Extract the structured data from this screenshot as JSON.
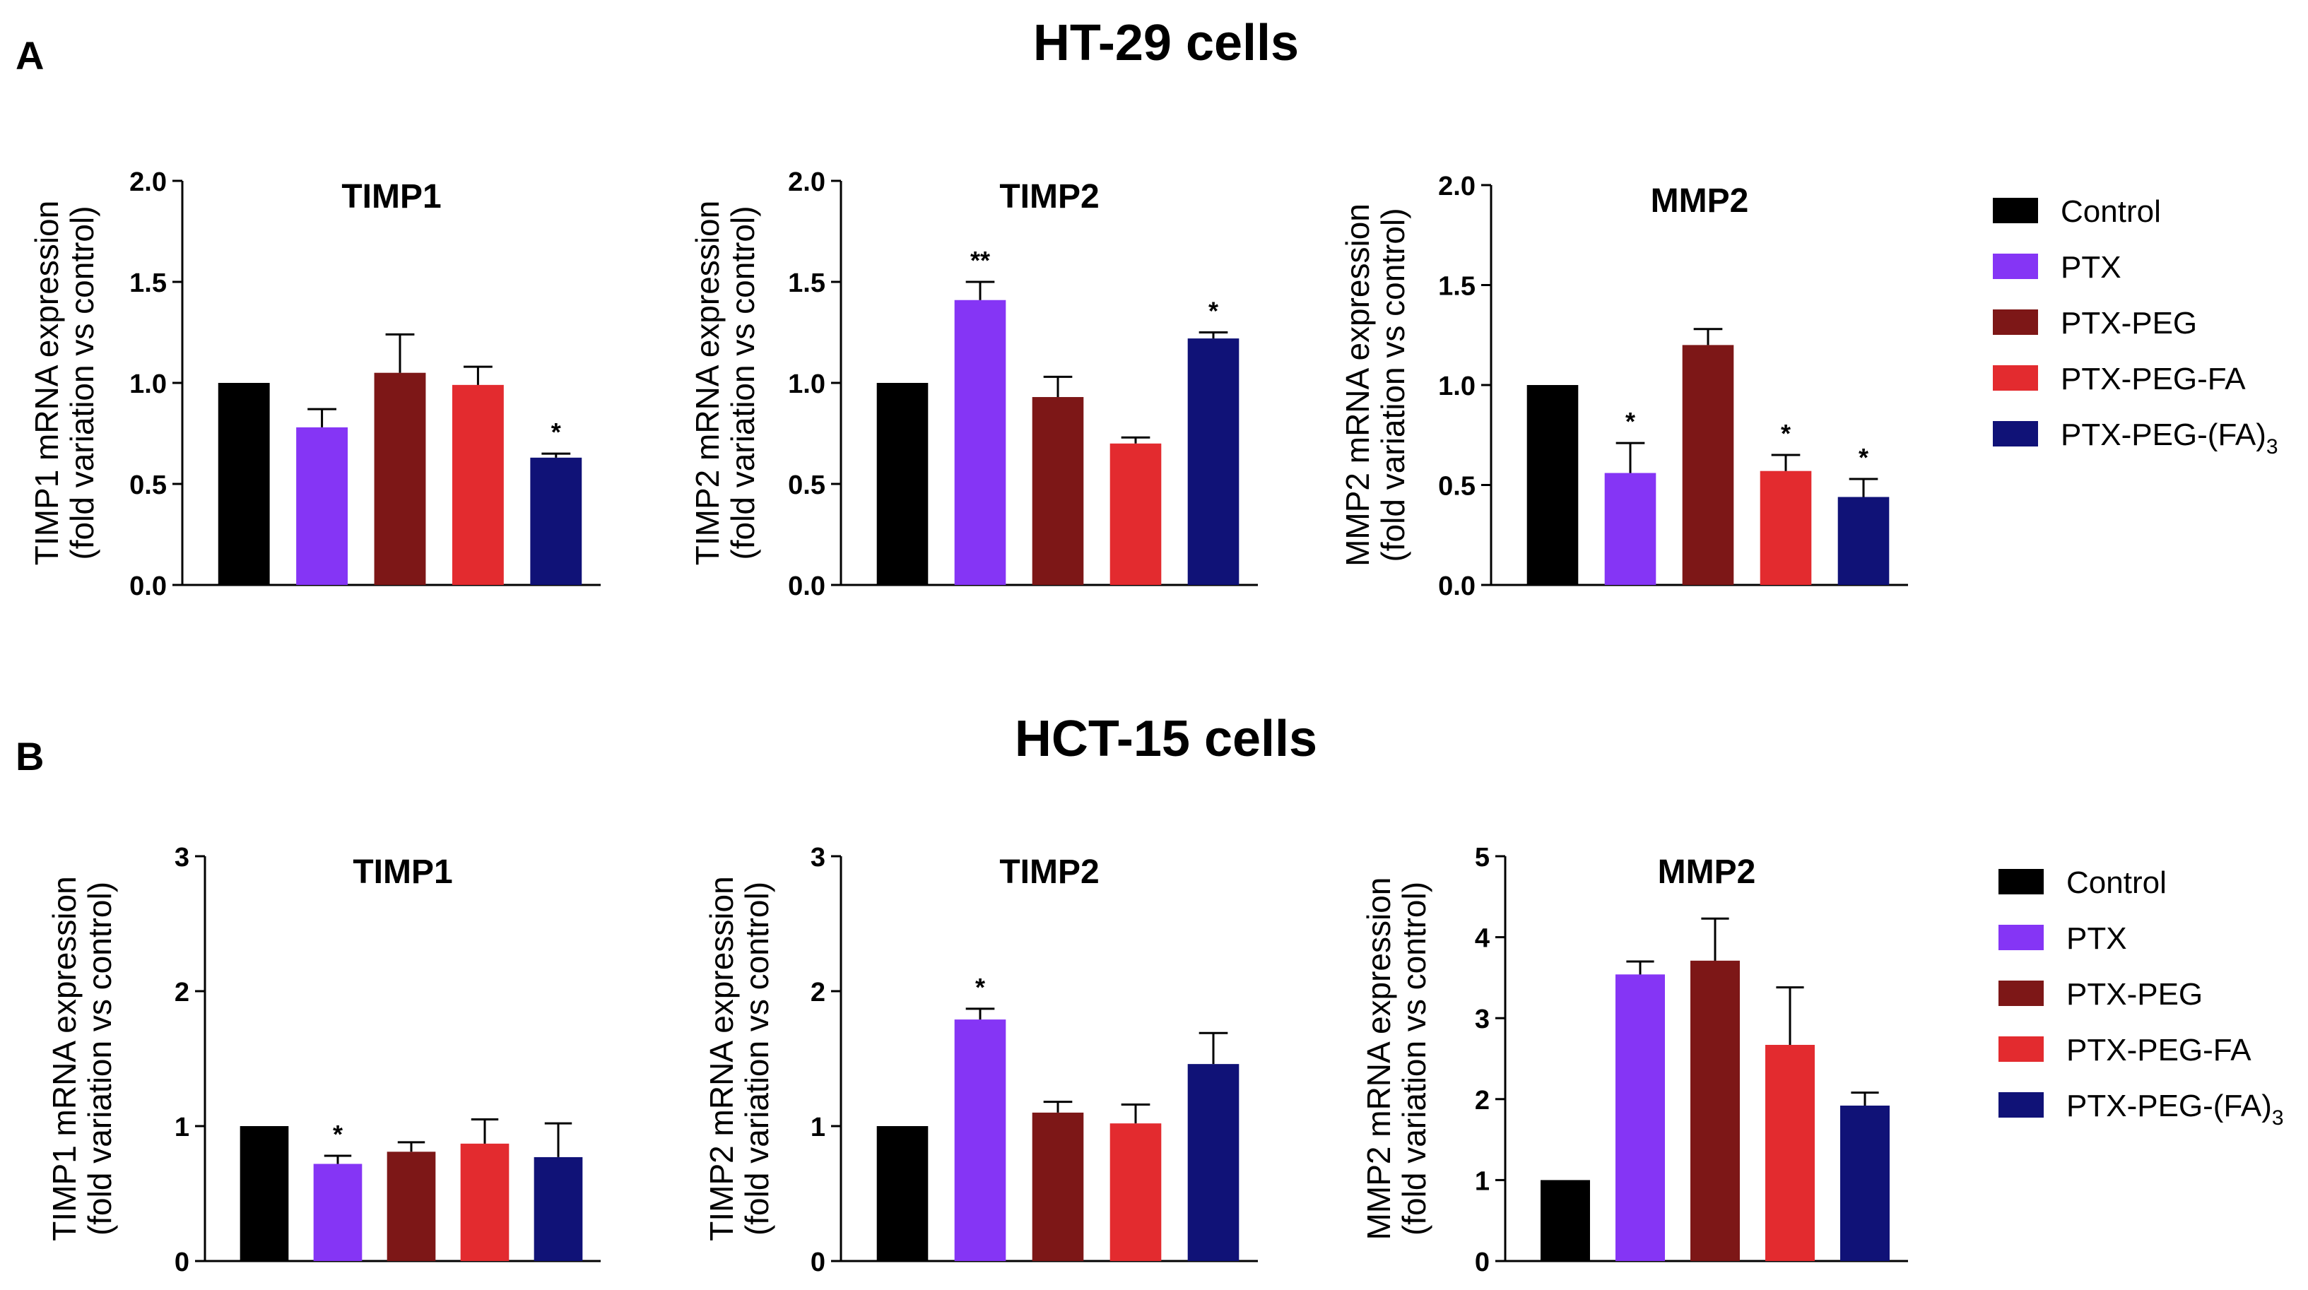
{
  "figure": {
    "panel_a": {
      "letter": "A",
      "title": "HT-29 cells"
    },
    "panel_b": {
      "letter": "B",
      "title": "HCT-15 cells"
    },
    "legend": [
      {
        "label": "Control",
        "sub": ""
      },
      {
        "label": "PTX",
        "sub": ""
      },
      {
        "label": "PTX-PEG",
        "sub": ""
      },
      {
        "label": "PTX-PEG-FA",
        "sub": ""
      },
      {
        "label": "PTX-PEG-(FA)",
        "sub": "3"
      }
    ]
  },
  "colors": {
    "Control": "#000000",
    "PTX": "#8535f5",
    "PTX-PEG": "#7d1717",
    "PTX-PEG-FA": "#e32b2f",
    "PTX-PEG-(FA)3": "#101277"
  },
  "chart_data": [
    {
      "type": "bar",
      "panel": "A",
      "title": "TIMP1",
      "ylabel": "TIMP1 mRNA expression",
      "ylabel2": "(fold variation vs control)",
      "categories": [
        "Control",
        "PTX",
        "PTX-PEG",
        "PTX-PEG-FA",
        "PTX-PEG-(FA)3"
      ],
      "values": [
        1.0,
        0.78,
        1.05,
        0.99,
        0.63
      ],
      "errors": [
        0,
        0.09,
        0.19,
        0.09,
        0.02
      ],
      "significance": [
        "",
        "",
        "",
        "",
        "*"
      ],
      "ylim": [
        0,
        2.0
      ],
      "yticks": [
        "0.0",
        "0.5",
        "1.0",
        "1.5",
        "2.0"
      ]
    },
    {
      "type": "bar",
      "panel": "A",
      "title": "TIMP2",
      "ylabel": "TIMP2 mRNA expression",
      "ylabel2": "(fold variation vs control)",
      "categories": [
        "Control",
        "PTX",
        "PTX-PEG",
        "PTX-PEG-FA",
        "PTX-PEG-(FA)3"
      ],
      "values": [
        1.0,
        1.41,
        0.93,
        0.7,
        1.22
      ],
      "errors": [
        0,
        0.09,
        0.1,
        0.03,
        0.03
      ],
      "significance": [
        "",
        "**",
        "",
        "",
        "*"
      ],
      "ylim": [
        0,
        2.0
      ],
      "yticks": [
        "0.0",
        "0.5",
        "1.0",
        "1.5",
        "2.0"
      ]
    },
    {
      "type": "bar",
      "panel": "A",
      "title": "MMP2",
      "ylabel": "MMP2 mRNA expression",
      "ylabel2": "(fold variation vs control)",
      "categories": [
        "Control",
        "PTX",
        "PTX-PEG",
        "PTX-PEG-FA",
        "PTX-PEG-(FA)3"
      ],
      "values": [
        1.0,
        0.56,
        1.2,
        0.57,
        0.44
      ],
      "errors": [
        0,
        0.15,
        0.08,
        0.08,
        0.09
      ],
      "significance": [
        "",
        "*",
        "",
        "*",
        "*"
      ],
      "ylim": [
        0,
        2.0
      ],
      "yticks": [
        "0.0",
        "0.5",
        "1.0",
        "1.5",
        "2.0"
      ]
    },
    {
      "type": "bar",
      "panel": "B",
      "title": "TIMP1",
      "ylabel": "TIMP1 mRNA expression",
      "ylabel2": "(fold variation vs control)",
      "categories": [
        "Control",
        "PTX",
        "PTX-PEG",
        "PTX-PEG-FA",
        "PTX-PEG-(FA)3"
      ],
      "values": [
        1.0,
        0.72,
        0.81,
        0.87,
        0.77
      ],
      "errors": [
        0,
        0.06,
        0.07,
        0.18,
        0.25
      ],
      "significance": [
        "",
        "*",
        "",
        "",
        ""
      ],
      "ylim": [
        0,
        3
      ],
      "yticks": [
        "0",
        "1",
        "2",
        "3"
      ]
    },
    {
      "type": "bar",
      "panel": "B",
      "title": "TIMP2",
      "ylabel": "TIMP2 mRNA expression",
      "ylabel2": "(fold variation vs control)",
      "categories": [
        "Control",
        "PTX",
        "PTX-PEG",
        "PTX-PEG-FA",
        "PTX-PEG-(FA)3"
      ],
      "values": [
        1.0,
        1.79,
        1.1,
        1.02,
        1.46
      ],
      "errors": [
        0,
        0.08,
        0.08,
        0.14,
        0.23
      ],
      "significance": [
        "",
        "*",
        "",
        "",
        ""
      ],
      "ylim": [
        0,
        3
      ],
      "yticks": [
        "0",
        "1",
        "2",
        "3"
      ]
    },
    {
      "type": "bar",
      "panel": "B",
      "title": "MMP2",
      "ylabel": "MMP2 mRNA expression",
      "ylabel2": "(fold variation vs control)",
      "categories": [
        "Control",
        "PTX",
        "PTX-PEG",
        "PTX-PEG-FA",
        "PTX-PEG-(FA)3"
      ],
      "values": [
        1.0,
        3.54,
        3.71,
        2.67,
        1.92
      ],
      "errors": [
        0,
        0.16,
        0.52,
        0.71,
        0.16
      ],
      "significance": [
        "",
        "",
        "",
        "",
        ""
      ],
      "ylim": [
        0,
        5
      ],
      "yticks": [
        "0",
        "1",
        "2",
        "3",
        "4",
        "5"
      ]
    }
  ]
}
